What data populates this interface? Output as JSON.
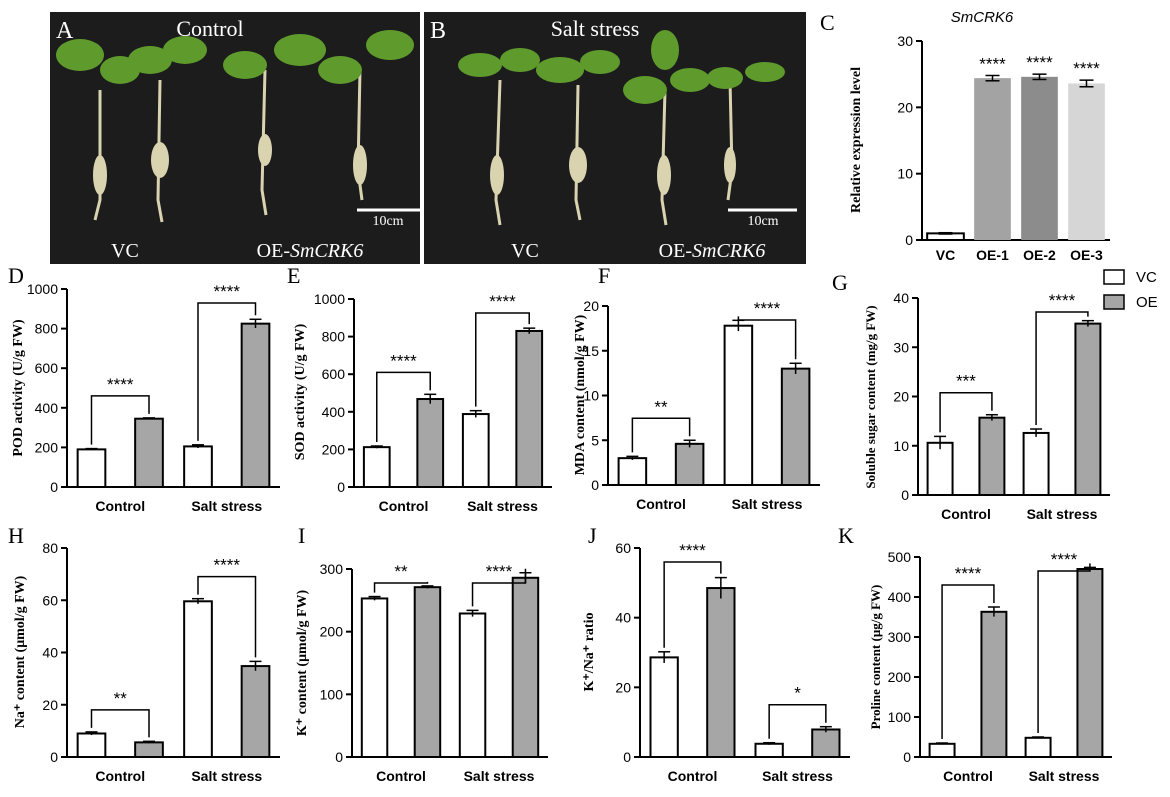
{
  "legend": {
    "vc": "VC",
    "oe": "OE"
  },
  "photos": [
    {
      "label": "A",
      "title": "Control",
      "scale_bar": "10cm",
      "left_label": "VC",
      "right_label_prefix": "OE-",
      "right_label_gene": "SmCRK6"
    },
    {
      "label": "B",
      "title": "Salt stress",
      "scale_bar": "10cm",
      "left_label": "VC",
      "right_label_prefix": "OE-",
      "right_label_gene": "SmCRK6"
    }
  ],
  "colors": {
    "vc": "#ffffff",
    "oe": "#a6a6a6",
    "oe1": "#a3a3a3",
    "oe2": "#8c8c8c",
    "oe3": "#d6d6d6",
    "plant_bg": "#1c1c1c",
    "leaf": "#5e9a2c"
  },
  "chart_data": [
    {
      "id": "C",
      "type": "bar",
      "title": "SmCRK6",
      "ylabel": "Relative expression level",
      "categories": [
        "VC",
        "OE-1",
        "OE-2",
        "OE-3"
      ],
      "values": [
        1.0,
        24.4,
        24.6,
        23.6
      ],
      "errors": [
        0.1,
        0.4,
        0.4,
        0.5
      ],
      "signif": [
        "",
        "****",
        "****",
        "****"
      ],
      "ylim": [
        0,
        30
      ],
      "ticks": [
        0,
        10,
        20,
        30
      ]
    },
    {
      "id": "D",
      "type": "bar",
      "ylabel": "POD activity (U/g FW)",
      "groups": [
        "Control",
        "Salt stress"
      ],
      "series": [
        {
          "name": "VC",
          "values": [
            190,
            205
          ],
          "errors": [
            4,
            8
          ]
        },
        {
          "name": "OE",
          "values": [
            345,
            825
          ],
          "errors": [
            4,
            22
          ]
        }
      ],
      "signif": [
        "****",
        "****"
      ],
      "ylim": [
        0,
        1000
      ],
      "ticks": [
        0,
        200,
        400,
        600,
        800,
        1000
      ]
    },
    {
      "id": "E",
      "type": "bar",
      "ylabel": "SOD activity (U/g FW)",
      "groups": [
        "Control",
        "Salt stress"
      ],
      "series": [
        {
          "name": "VC",
          "values": [
            212,
            388
          ],
          "errors": [
            6,
            18
          ]
        },
        {
          "name": "OE",
          "values": [
            468,
            830
          ],
          "errors": [
            25,
            15
          ]
        }
      ],
      "signif": [
        "****",
        "****"
      ],
      "ylim": [
        0,
        1000
      ],
      "ticks": [
        0,
        200,
        400,
        600,
        800,
        1000
      ]
    },
    {
      "id": "F",
      "type": "bar",
      "ylabel": "MDA content (nmol/g FW)",
      "groups": [
        "Control",
        "Salt stress"
      ],
      "series": [
        {
          "name": "VC",
          "values": [
            3.0,
            17.8
          ],
          "errors": [
            0.2,
            0.6
          ]
        },
        {
          "name": "OE",
          "values": [
            4.6,
            13.0
          ],
          "errors": [
            0.4,
            0.6
          ]
        }
      ],
      "signif": [
        "**",
        "****"
      ],
      "ylim": [
        0,
        20
      ],
      "ticks": [
        0,
        5,
        10,
        15,
        20
      ]
    },
    {
      "id": "G",
      "type": "bar",
      "ylabel": "Soluble sugar content  (mg/g FW)",
      "groups": [
        "Control",
        "Salt stress"
      ],
      "series": [
        {
          "name": "VC",
          "values": [
            10.6,
            12.6
          ],
          "errors": [
            1.3,
            0.8
          ]
        },
        {
          "name": "OE",
          "values": [
            15.7,
            34.8
          ],
          "errors": [
            0.6,
            0.6
          ]
        }
      ],
      "signif": [
        "***",
        "****"
      ],
      "ylim": [
        0,
        40
      ],
      "ticks": [
        0,
        10,
        20,
        30,
        40
      ]
    },
    {
      "id": "H",
      "type": "bar",
      "ylabel": "Na⁺ content (μmol/g FW)",
      "groups": [
        "Control",
        "Salt stress"
      ],
      "series": [
        {
          "name": "VC",
          "values": [
            9.0,
            59.6
          ],
          "errors": [
            0.6,
            1.0
          ]
        },
        {
          "name": "OE",
          "values": [
            5.6,
            34.8
          ],
          "errors": [
            0.4,
            1.8
          ]
        }
      ],
      "signif": [
        "**",
        "****"
      ],
      "ylim": [
        0,
        80
      ],
      "ticks": [
        0,
        20,
        40,
        60,
        80
      ]
    },
    {
      "id": "I",
      "type": "bar",
      "ylabel": "K⁺ content (μmol/g FW)",
      "groups": [
        "Control",
        "Salt stress"
      ],
      "series": [
        {
          "name": "VC",
          "values": [
            253,
            229
          ],
          "errors": [
            3,
            5
          ]
        },
        {
          "name": "OE",
          "values": [
            271,
            286
          ],
          "errors": [
            2,
            8
          ]
        }
      ],
      "signif": [
        "**",
        "****"
      ],
      "ylim": [
        0,
        300
      ],
      "ticks": [
        0,
        100,
        200,
        300
      ]
    },
    {
      "id": "J",
      "type": "bar",
      "ylabel": "K⁺/Na⁺ ratio",
      "groups": [
        "Control",
        "Salt stress"
      ],
      "series": [
        {
          "name": "VC",
          "values": [
            28.6,
            3.8
          ],
          "errors": [
            1.6,
            0.3
          ]
        },
        {
          "name": "OE",
          "values": [
            48.5,
            7.9
          ],
          "errors": [
            3.0,
            0.8
          ]
        }
      ],
      "signif": [
        "****",
        "*"
      ],
      "ylim": [
        0,
        60
      ],
      "ticks": [
        0,
        20,
        40,
        60
      ]
    },
    {
      "id": "K",
      "type": "bar",
      "ylabel": "Proline content (μg/g FW)",
      "groups": [
        "Control",
        "Salt stress"
      ],
      "series": [
        {
          "name": "VC",
          "values": [
            33,
            48
          ],
          "errors": [
            2,
            2
          ]
        },
        {
          "name": "OE",
          "values": [
            363,
            470
          ],
          "errors": [
            12,
            4
          ]
        }
      ],
      "signif": [
        "****",
        "****"
      ],
      "ylim": [
        0,
        500
      ],
      "ticks": [
        0,
        100,
        200,
        300,
        400,
        500
      ]
    }
  ]
}
